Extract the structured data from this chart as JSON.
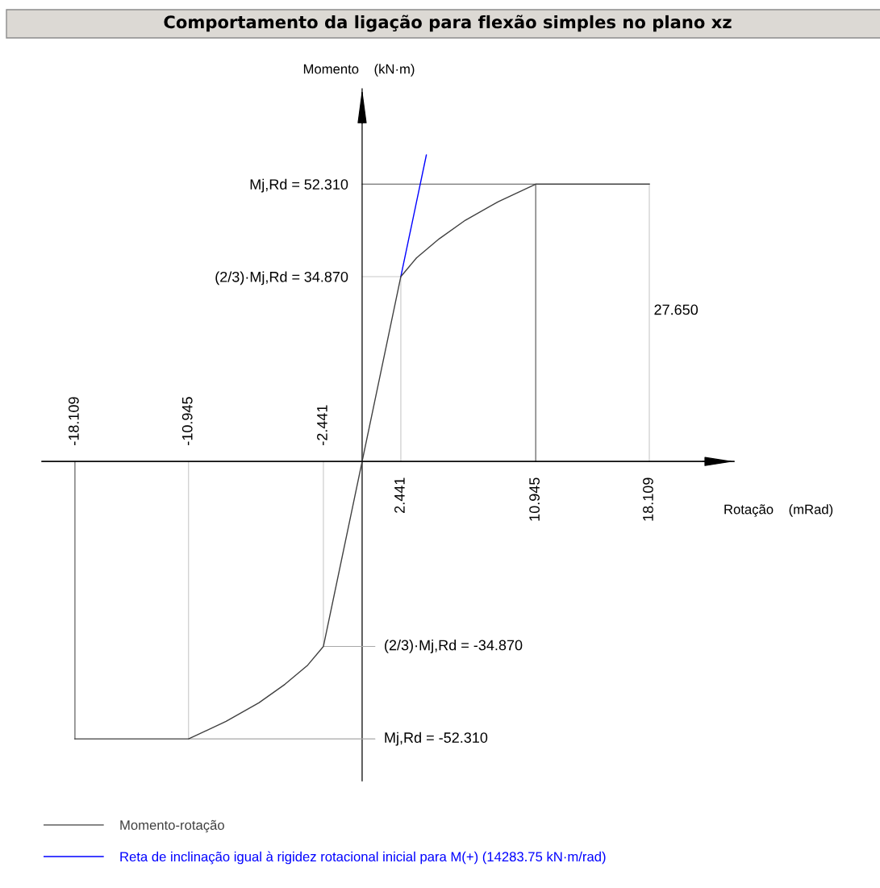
{
  "chart_data": {
    "type": "line",
    "title": "Comportamento da ligação para flexão simples no plano xz",
    "xlabel": "Rotação    (mRad)",
    "ylabel": "Momento    (kN·m)",
    "xlim": [
      -20.19,
      23.45
    ],
    "ylim": [
      -60.2,
      70.3
    ],
    "xticks": [
      2.441,
      10.945,
      18.109
    ],
    "x2lim": [
      -20.19,
      23.45
    ],
    "x2ticks": [
      -18.109,
      -10.945,
      -2.441
    ],
    "yticks": [
      {
        "value": 52.31,
        "label": "52.310"
      },
      {
        "value": 34.87,
        "label": "34.870"
      }
    ],
    "series": [
      {
        "name": "Momento-rotação",
        "color": "#404040",
        "x": [
          -18.109,
          -10.945,
          -8.58,
          -6.51,
          -4.86,
          -3.43,
          -2.441,
          0,
          2.441,
          3.43,
          4.86,
          6.51,
          8.58,
          10.945,
          18.109
        ],
        "values": [
          -52.31,
          -52.31,
          -49.0,
          -45.5,
          -42.0,
          -38.4,
          -34.87,
          0,
          34.87,
          38.4,
          42.0,
          45.5,
          49.0,
          52.31,
          52.31
        ]
      },
      {
        "name": "Reta de inclinação igual à rigidez rotacional inicial para M(+) (14283.75 kN·m/rad)",
        "color": "#0000ff",
        "x": [
          2.441,
          4.05
        ],
        "values": [
          34.87,
          57.8
        ]
      },
      {
        "color": "#505050",
        "x": [
          0,
          10.945,
          10.945
        ],
        "values": [
          52.31,
          52.31,
          0
        ]
      },
      {
        "color": "#505050",
        "x": [
          -18.109,
          -18.109
        ],
        "values": [
          0,
          -52.31
        ]
      },
      {
        "color": "#c8c8c8",
        "x": [
          18.109,
          18.109
        ],
        "values": [
          52.31,
          0
        ]
      },
      {
        "color": "#c8c8c8",
        "x": [
          0,
          2.441,
          2.441
        ],
        "values": [
          34.87,
          34.87,
          0
        ]
      },
      {
        "color": "#c8c8c8",
        "x": [
          -10.945,
          -10.945
        ],
        "values": [
          -52.31,
          0
        ]
      },
      {
        "color": "#c8c8c8",
        "x": [
          -2.441,
          -2.441
        ],
        "values": [
          0,
          -34.87
        ]
      }
    ],
    "annotations": [
      "Mj,Rd =",
      "(2/3)·Mj,Rd =",
      {
        "text": "(2/3)·Mj,Rd = -34.870",
        "x": -2.441,
        "y": -34.87
      },
      {
        "text": "Mj,Rd = -52.310",
        "x": -10.945,
        "y": -52.31
      },
      {
        "text": "27.650",
        "x": 18.109,
        "y": 28.4
      }
    ],
    "legend": "bottom left"
  }
}
